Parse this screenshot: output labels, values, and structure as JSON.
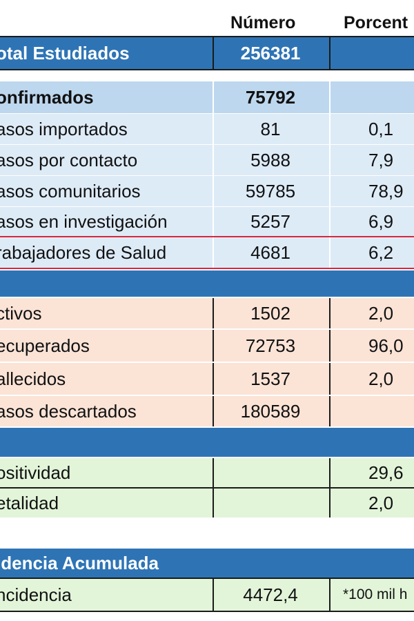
{
  "header": {
    "col_number": "Número",
    "col_percent": "Porcent"
  },
  "total": {
    "label": "otal Estudiados",
    "number": "256381"
  },
  "confirmed": {
    "title": {
      "label": "onfirmados",
      "number": "75792",
      "percent": ""
    },
    "rows": [
      {
        "label": "asos importados",
        "number": "81",
        "percent": "0,1"
      },
      {
        "label": "asos por contacto",
        "number": "5988",
        "percent": "7,9"
      },
      {
        "label": "asos comunitarios",
        "number": "59785",
        "percent": "78,9"
      },
      {
        "label": "asos en investigación",
        "number": "5257",
        "percent": "6,9"
      },
      {
        "label": "rabajadores de Salud",
        "number": "4681",
        "percent": "6,2"
      }
    ]
  },
  "status": {
    "rows": [
      {
        "label": "ctivos",
        "number": "1502",
        "percent": "2,0"
      },
      {
        "label": "ecuperados",
        "number": "72753",
        "percent": "96,0"
      },
      {
        "label": "allecidos",
        "number": "1537",
        "percent": "2,0"
      },
      {
        "label": "asos descartados",
        "number": "180589",
        "percent": ""
      }
    ]
  },
  "rates": {
    "rows": [
      {
        "label": "ositividad",
        "number": "",
        "percent": "29,6"
      },
      {
        "label": "etalidad",
        "number": "",
        "percent": "2,0"
      }
    ]
  },
  "incidence": {
    "title": "idencia Acumulada",
    "row": {
      "label": "ncidencia",
      "number": "4472,4",
      "note": "*100 mil h"
    }
  },
  "colors": {
    "dark_blue": "#2e74b5",
    "light_blue": "#bdd7ee",
    "pale_blue": "#ddebf7",
    "peach": "#fbe3d6",
    "green": "#e2f5d9",
    "red_line": "#d9263a"
  }
}
